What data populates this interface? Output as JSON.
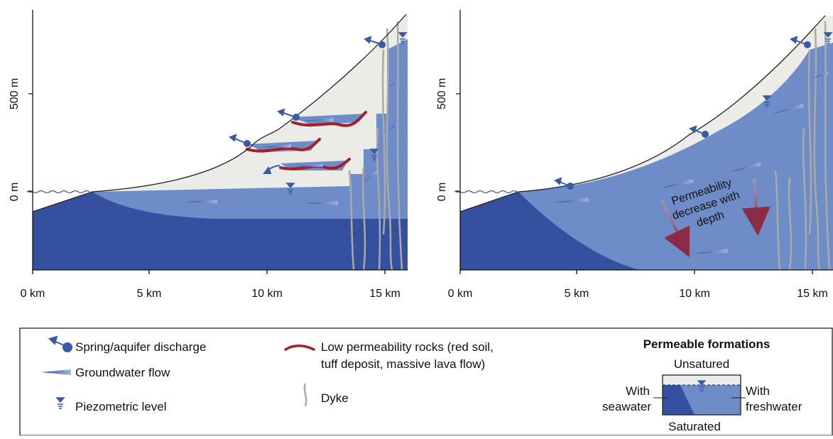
{
  "colors": {
    "seawater": "#34509e",
    "freshwater": "#6d8cc8",
    "unsaturated": "#ebece8",
    "low_permeability": "#a3202a",
    "dyke": "#a9aaa6",
    "flow_arrow": "#3c59a8",
    "permeability_arrow": "#8e3b55"
  },
  "panels": [
    {
      "id": "left",
      "y_axis_ticks": [
        "500 m",
        "0 m"
      ],
      "x_axis_ticks": [
        "0 km",
        "5 km",
        "10 km",
        "15 km"
      ]
    },
    {
      "id": "right",
      "y_axis_ticks": [
        "500 m",
        "0 m"
      ],
      "x_axis_ticks": [
        "0 km",
        "5 km",
        "10 km",
        "15 km"
      ],
      "annotation": [
        "Permeability",
        "decrease with",
        "depth"
      ]
    }
  ],
  "legend": {
    "items": [
      {
        "icon": "spring-discharge-icon",
        "label": "Spring/aquifer discharge"
      },
      {
        "icon": "groundwater-flow-icon",
        "label": "Groundwater flow"
      },
      {
        "icon": "piezometric-level-icon",
        "label": "Piezometric level"
      },
      {
        "icon": "low-permeability-icon",
        "label_lines": [
          "Low permeability rocks (red soil,",
          "tuff deposit, massive lava flow)"
        ]
      },
      {
        "icon": "dyke-icon",
        "label": "Dyke"
      }
    ],
    "permeable_formations": {
      "title": "Permeable formations",
      "unsatured": "Unsatured",
      "saturated": "Saturated",
      "with_seawater": [
        "With",
        "seawater"
      ],
      "with_freshwater": [
        "With",
        "freshwater"
      ]
    }
  }
}
